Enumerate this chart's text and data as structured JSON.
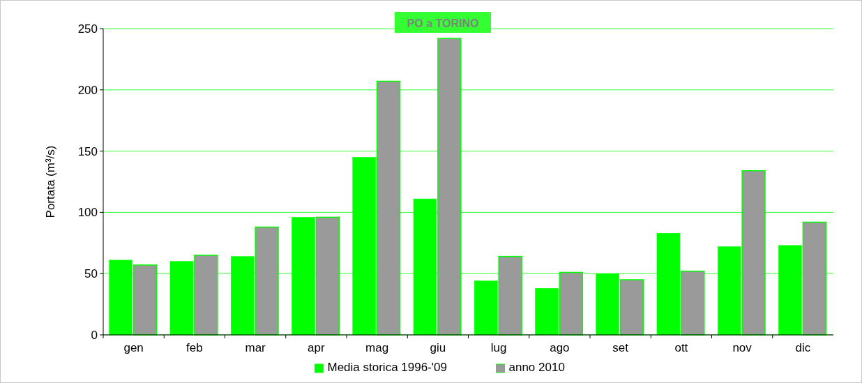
{
  "chart_data": {
    "type": "bar",
    "title": "PO a TORINO",
    "ylabel": "Portata (m³/s)",
    "categories": [
      "gen",
      "feb",
      "mar",
      "apr",
      "mag",
      "giu",
      "lug",
      "ago",
      "set",
      "ott",
      "nov",
      "dic"
    ],
    "series": [
      {
        "name": "Media storica 1996-'09",
        "color": "#00ff00",
        "values": [
          61,
          60,
          64,
          96,
          145,
          111,
          44,
          38,
          50,
          83,
          72,
          73
        ]
      },
      {
        "name": "anno 2010",
        "color": "#9a9a9a",
        "values": [
          57,
          65,
          88,
          96,
          207,
          242,
          64,
          51,
          45,
          52,
          134,
          92
        ]
      }
    ],
    "ylim": [
      0,
      250
    ],
    "yticks": [
      0,
      50,
      100,
      150,
      200,
      250
    ],
    "grid": "y",
    "legend": "bottom"
  }
}
